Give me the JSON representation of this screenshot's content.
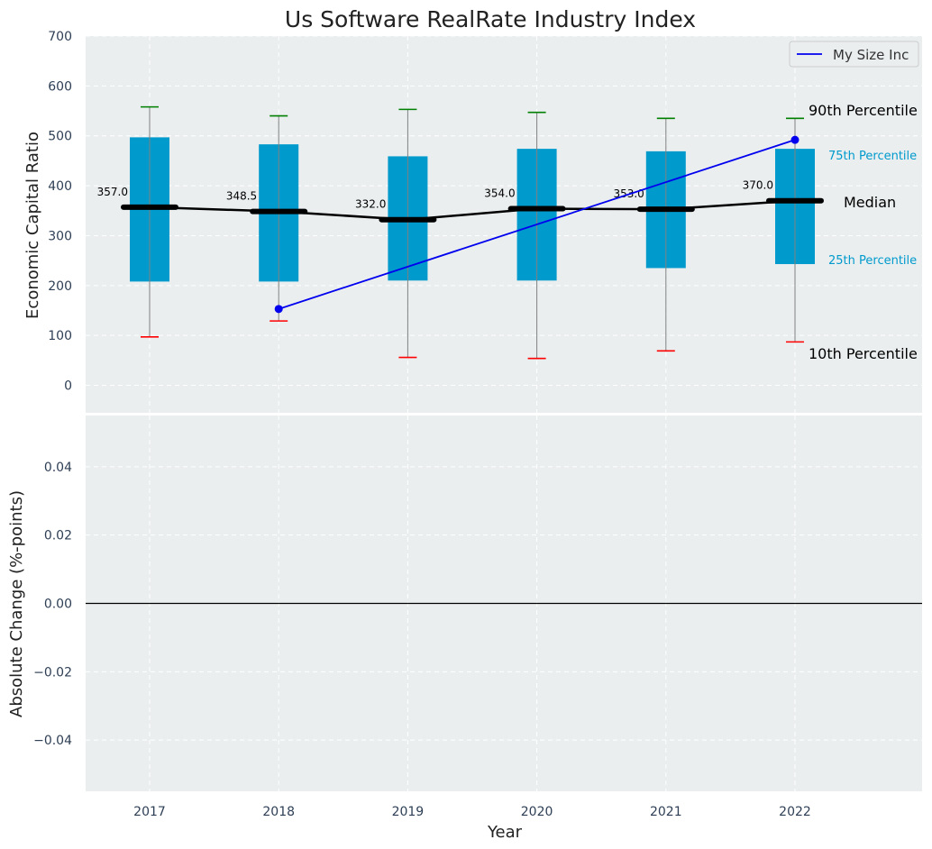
{
  "chart_data": {
    "type": "box",
    "title": "Us Software RealRate Industry Index",
    "xlabel": "Year",
    "top_panel": {
      "ylabel": "Economic Capital Ratio",
      "ylim": [
        -55,
        700
      ],
      "yticks": [
        "0",
        "100",
        "200",
        "300",
        "400",
        "500",
        "600",
        "700"
      ],
      "ytick_values": [
        0,
        100,
        200,
        300,
        400,
        500,
        600,
        700
      ],
      "categories": [
        "2017",
        "2018",
        "2019",
        "2020",
        "2021",
        "2022"
      ],
      "p10": [
        97,
        129,
        56,
        54,
        69,
        87
      ],
      "p25": [
        208,
        208,
        210,
        210,
        235,
        243
      ],
      "median": [
        357.0,
        348.5,
        332.0,
        354.0,
        353.0,
        370.0
      ],
      "median_labels": [
        "357.0",
        "348.5",
        "332.0",
        "354.0",
        "353.0",
        "370.0"
      ],
      "p75": [
        497,
        483,
        459,
        474,
        469,
        474
      ],
      "p90": [
        558,
        540,
        553,
        547,
        535,
        535
      ],
      "series": [
        {
          "name": "My Size Inc",
          "x": [
            "2018",
            "2022"
          ],
          "values": [
            153,
            492
          ],
          "color": "#0000ee"
        }
      ],
      "annotations": {
        "p90": "90th Percentile",
        "p75": "75th Percentile",
        "median": "Median",
        "p25": "25th Percentile",
        "p10": "10th Percentile"
      },
      "legend_position": "top-right",
      "grid": true
    },
    "bottom_panel": {
      "ylabel": "Absolute Change (%-points)",
      "ylim": [
        -0.055,
        0.055
      ],
      "yticks": [
        "−0.04",
        "−0.02",
        "0.00",
        "0.02",
        "0.04"
      ],
      "ytick_values": [
        -0.04,
        -0.02,
        0.0,
        0.02,
        0.04
      ],
      "zero_line": true,
      "grid": true
    },
    "colors": {
      "box": "#009acd",
      "median": "#000000",
      "p90_cap": "#008000",
      "p10_cap": "#ff0000",
      "series": "#0000ee",
      "panel_bg": "#eaeeef",
      "axis_text": "#2e3f55"
    }
  }
}
